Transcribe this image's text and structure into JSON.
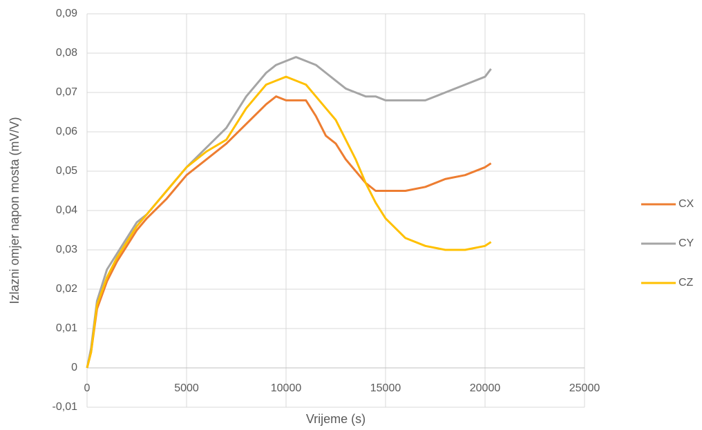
{
  "chart_data": {
    "type": "line",
    "x_label": "Vrijeme (s)",
    "y_label": "Izlazni omjer napon mosta (mV/V)",
    "x": [
      0,
      200,
      500,
      1000,
      1500,
      2000,
      2500,
      3000,
      4000,
      5000,
      6000,
      7000,
      8000,
      9000,
      9500,
      10000,
      10500,
      11000,
      11500,
      12000,
      12500,
      13000,
      13500,
      14000,
      14500,
      15000,
      16000,
      17000,
      18000,
      19000,
      20000,
      20300
    ],
    "series": [
      {
        "name": "CX",
        "color": "#ED7D31",
        "values": [
          0,
          0.004,
          0.015,
          0.022,
          0.027,
          0.031,
          0.035,
          0.038,
          0.043,
          0.049,
          0.053,
          0.057,
          0.062,
          0.067,
          0.069,
          0.068,
          0.068,
          0.068,
          0.064,
          0.059,
          0.057,
          0.053,
          0.05,
          0.047,
          0.045,
          0.045,
          0.045,
          0.046,
          0.048,
          0.049,
          0.051,
          0.052
        ]
      },
      {
        "name": "CY",
        "color": "#A5A5A5",
        "values": [
          0,
          0.005,
          0.017,
          0.025,
          0.029,
          0.033,
          0.037,
          0.039,
          0.045,
          0.051,
          0.056,
          0.061,
          0.069,
          0.075,
          0.077,
          0.078,
          0.079,
          0.078,
          0.077,
          0.075,
          0.073,
          0.071,
          0.07,
          0.069,
          0.069,
          0.068,
          0.068,
          0.068,
          0.07,
          0.072,
          0.074,
          0.076
        ]
      },
      {
        "name": "CZ",
        "color": "#FFC000",
        "values": [
          0,
          0.004,
          0.016,
          0.023,
          0.028,
          0.032,
          0.036,
          0.039,
          0.045,
          0.051,
          0.055,
          0.058,
          0.066,
          0.072,
          0.073,
          0.074,
          0.073,
          0.072,
          0.069,
          0.066,
          0.063,
          0.058,
          0.053,
          0.047,
          0.042,
          0.038,
          0.033,
          0.031,
          0.03,
          0.03,
          0.031,
          0.032
        ]
      }
    ],
    "xlim": [
      0,
      25000
    ],
    "xticks": [
      0,
      5000,
      10000,
      15000,
      20000,
      25000
    ],
    "ylim": [
      -0.01,
      0.09
    ],
    "yticks": [
      {
        "value": -0.01,
        "label": "-0,01"
      },
      0,
      {
        "value": 0.01,
        "label": "0,01"
      },
      {
        "value": 0.02,
        "label": "0,02"
      },
      {
        "value": 0.03,
        "label": "0,03"
      },
      {
        "value": 0.04,
        "label": "0,04"
      },
      {
        "value": 0.05,
        "label": "0,05"
      },
      {
        "value": 0.06,
        "label": "0,06"
      },
      {
        "value": 0.07,
        "label": "0,07"
      },
      {
        "value": 0.08,
        "label": "0,08"
      },
      {
        "value": 0.09,
        "label": "0,09"
      }
    ],
    "grid": true,
    "legend": "right"
  }
}
